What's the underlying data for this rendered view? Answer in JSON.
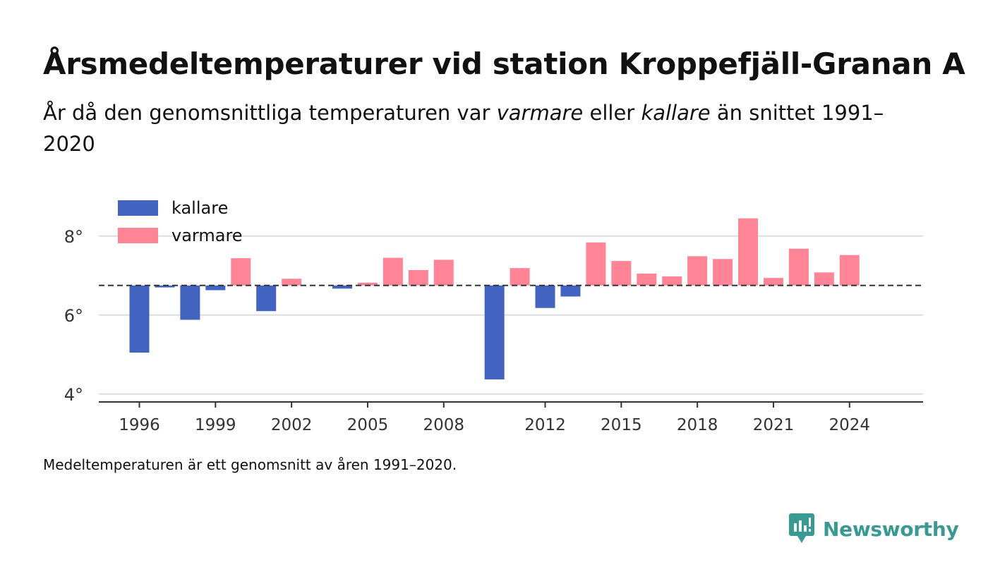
{
  "title": "Årsmedeltemperaturer vid station Kroppefjäll-Granan A",
  "subtitle": {
    "part1": "År då den genomsnittliga temperaturen var ",
    "warm_word": "varmare",
    "part2": " eller ",
    "cold_word": "kallare",
    "part3": " än snittet 1991–2020"
  },
  "note": "Medeltemperaturen är ett genomsnitt av åren 1991–2020.",
  "brand": {
    "name": "Newsworthy",
    "icon": "newsworthy-logo-icon",
    "color": "#3a9a93"
  },
  "chart_data": {
    "type": "bar",
    "baseline": 6.75,
    "ylim": [
      3.8,
      8.8
    ],
    "yticks": [
      4,
      6,
      8
    ],
    "ytick_labels": [
      "4°",
      "6°",
      "8°"
    ],
    "xticks": [
      1996,
      1999,
      2002,
      2005,
      2008,
      2012,
      2015,
      2018,
      2021,
      2024
    ],
    "xlim": [
      1994.4,
      2026.9
    ],
    "grid": true,
    "legend": {
      "placement": "top-left",
      "entries": [
        {
          "label": "kallare",
          "color": "#4263c0"
        },
        {
          "label": "varmare",
          "color": "#ff8596"
        }
      ]
    },
    "colors": {
      "colder": "#4263c0",
      "warmer": "#ff8596"
    },
    "x": [
      1996,
      1997,
      1998,
      1999,
      2000,
      2001,
      2002,
      2004,
      2005,
      2006,
      2007,
      2008,
      2010,
      2011,
      2012,
      2013,
      2014,
      2015,
      2016,
      2017,
      2018,
      2019,
      2020,
      2021,
      2022,
      2023,
      2024
    ],
    "values": [
      5.05,
      6.7,
      5.88,
      6.63,
      7.44,
      6.1,
      6.92,
      6.67,
      6.82,
      7.45,
      7.14,
      7.4,
      4.37,
      7.19,
      6.18,
      6.47,
      7.84,
      7.37,
      7.05,
      6.98,
      7.49,
      7.42,
      8.45,
      6.94,
      7.68,
      7.08,
      7.52
    ]
  }
}
